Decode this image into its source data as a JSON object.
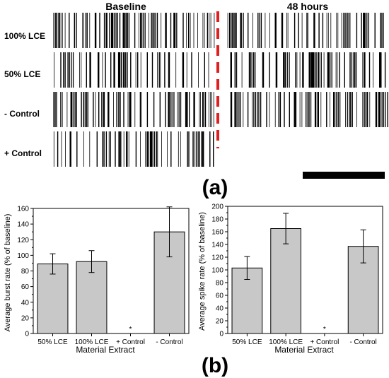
{
  "raster": {
    "headers": {
      "left": "Baseline",
      "right": "48 hours"
    },
    "rows": [
      {
        "label": "100% LCE",
        "seed": 11,
        "left_density": 0.55,
        "right_density": 0.55,
        "right_present": true
      },
      {
        "label": "50% LCE",
        "seed": 23,
        "left_density": 0.35,
        "right_density": 0.45,
        "right_present": true
      },
      {
        "label": "- Control",
        "seed": 37,
        "left_density": 0.6,
        "right_density": 0.7,
        "right_present": true
      },
      {
        "label": "+ Control",
        "seed": 51,
        "left_density": 0.45,
        "right_density": 0,
        "right_present": false
      }
    ],
    "divider_color": "#e02020",
    "panel_label": "(a)"
  },
  "panel_b_label": "(b)",
  "chart_data": [
    {
      "type": "bar",
      "categories": [
        "50% LCE",
        "100% LCE",
        "+ Control",
        "- Control"
      ],
      "values": [
        89,
        92,
        0,
        130
      ],
      "errors": [
        13,
        14,
        0,
        32
      ],
      "marker": [
        "",
        "",
        "*",
        ""
      ],
      "xlabel": "Material Extract",
      "ylabel": "Average burst rate (% of baseline)",
      "ylim": [
        0,
        160
      ],
      "yticks": [
        0,
        20,
        40,
        60,
        80,
        100,
        120,
        140,
        160
      ],
      "bar_color": "#c8c8c8"
    },
    {
      "type": "bar",
      "categories": [
        "50% LCE",
        "100% LCE",
        "+ Control",
        "- Control"
      ],
      "values": [
        103,
        165,
        0,
        137
      ],
      "errors": [
        18,
        24,
        0,
        26
      ],
      "marker": [
        "",
        "",
        "*",
        ""
      ],
      "xlabel": "Material Extract",
      "ylabel": "Average spike rate (% of baseline)",
      "ylim": [
        0,
        200
      ],
      "yticks": [
        0,
        20,
        40,
        60,
        80,
        100,
        120,
        140,
        160,
        180,
        200
      ],
      "bar_color": "#c8c8c8"
    }
  ]
}
